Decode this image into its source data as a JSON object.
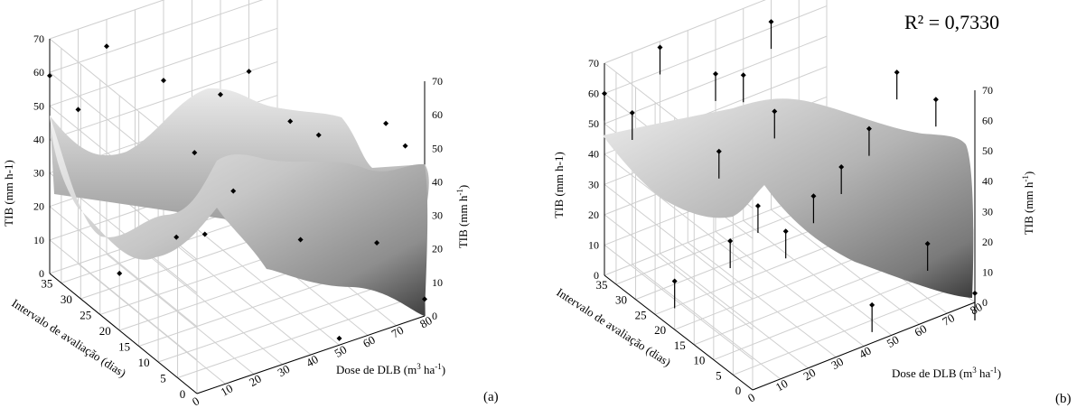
{
  "chart_data": [
    {
      "type": "surface",
      "panel_label": "(a)",
      "zlabel_left": "TIB (mm h-1)",
      "zlabel_right": "TIB (mm h-1)",
      "xlabel": "Dose de DLB (m3 ha-1)",
      "ylabel": "Intervalo de avaliação (dias)",
      "x_ticks": [
        "0",
        "10",
        "20",
        "30",
        "40",
        "50",
        "60",
        "70",
        "80"
      ],
      "y_ticks": [
        "0",
        "5",
        "10",
        "15",
        "20",
        "25",
        "30",
        "35"
      ],
      "z_ticks": [
        "0",
        "10",
        "20",
        "30",
        "40",
        "50",
        "60",
        "70"
      ],
      "xlim": [
        0,
        80
      ],
      "ylim": [
        0,
        38
      ],
      "zlim": [
        0,
        70
      ],
      "points": [
        {
          "dose": 0,
          "interval": 38,
          "tib": 59
        },
        {
          "dose": 0,
          "interval": 20,
          "tib": 17
        },
        {
          "dose": 10,
          "interval": 38,
          "tib": 46
        },
        {
          "dose": 20,
          "interval": 20,
          "tib": 22
        },
        {
          "dose": 30,
          "interval": 20,
          "tib": 20
        },
        {
          "dose": 20,
          "interval": 38,
          "tib": 62
        },
        {
          "dose": 40,
          "interval": 20,
          "tib": 30
        },
        {
          "dose": 40,
          "interval": 38,
          "tib": 46
        },
        {
          "dose": 60,
          "interval": 38,
          "tib": 36
        },
        {
          "dose": 70,
          "interval": 38,
          "tib": 40
        },
        {
          "dose": 40,
          "interval": 30,
          "tib": 32
        },
        {
          "dose": 60,
          "interval": 20,
          "tib": 45
        },
        {
          "dose": 70,
          "interval": 20,
          "tib": 38
        },
        {
          "dose": 50,
          "interval": 10,
          "tib": 22
        },
        {
          "dose": 50,
          "interval": 0,
          "tib": 2
        },
        {
          "dose": 70,
          "interval": 5,
          "tib": 20
        },
        {
          "dose": 80,
          "interval": 10,
          "tib": 48
        },
        {
          "dose": 80,
          "interval": 5,
          "tib": 46
        },
        {
          "dose": 80,
          "interval": 0,
          "tib": 5
        }
      ]
    },
    {
      "type": "surface",
      "panel_label": "(b)",
      "annotation": "R² = 0,7330",
      "zlabel_left": "TIB (mm h-1)",
      "zlabel_right": "TIB (mm h-1)",
      "xlabel": "Dose de DLB (m3 ha-1)",
      "ylabel": "Intervalo de avaliação (dias)",
      "x_ticks": [
        "0",
        "10",
        "20",
        "30",
        "40",
        "50",
        "60",
        "70",
        "80"
      ],
      "y_ticks": [
        "0",
        "5",
        "10",
        "15",
        "20",
        "25",
        "30",
        "35"
      ],
      "z_ticks": [
        "0",
        "10",
        "20",
        "30",
        "40",
        "50",
        "60",
        "70"
      ],
      "xlim": [
        0,
        80
      ],
      "ylim": [
        0,
        38
      ],
      "zlim": [
        0,
        70
      ],
      "points": [
        {
          "dose": 0,
          "interval": 38,
          "tib": 60
        },
        {
          "dose": 0,
          "interval": 20,
          "tib": 16
        },
        {
          "dose": 10,
          "interval": 38,
          "tib": 50
        },
        {
          "dose": 20,
          "interval": 20,
          "tib": 22
        },
        {
          "dose": 20,
          "interval": 38,
          "tib": 68
        },
        {
          "dose": 30,
          "interval": 20,
          "tib": 30
        },
        {
          "dose": 30,
          "interval": 30,
          "tib": 38
        },
        {
          "dose": 40,
          "interval": 20,
          "tib": 18
        },
        {
          "dose": 40,
          "interval": 38,
          "tib": 52
        },
        {
          "dose": 50,
          "interval": 38,
          "tib": 48
        },
        {
          "dose": 50,
          "interval": 30,
          "tib": 44
        },
        {
          "dose": 60,
          "interval": 38,
          "tib": 62
        },
        {
          "dose": 50,
          "interval": 20,
          "tib": 26
        },
        {
          "dose": 60,
          "interval": 20,
          "tib": 32
        },
        {
          "dose": 70,
          "interval": 20,
          "tib": 41
        },
        {
          "dose": 50,
          "interval": 5,
          "tib": 5
        },
        {
          "dose": 70,
          "interval": 5,
          "tib": 18
        },
        {
          "dose": 80,
          "interval": 20,
          "tib": 56
        },
        {
          "dose": 80,
          "interval": 10,
          "tib": 57
        },
        {
          "dose": 80,
          "interval": 0,
          "tib": 3
        }
      ]
    }
  ]
}
